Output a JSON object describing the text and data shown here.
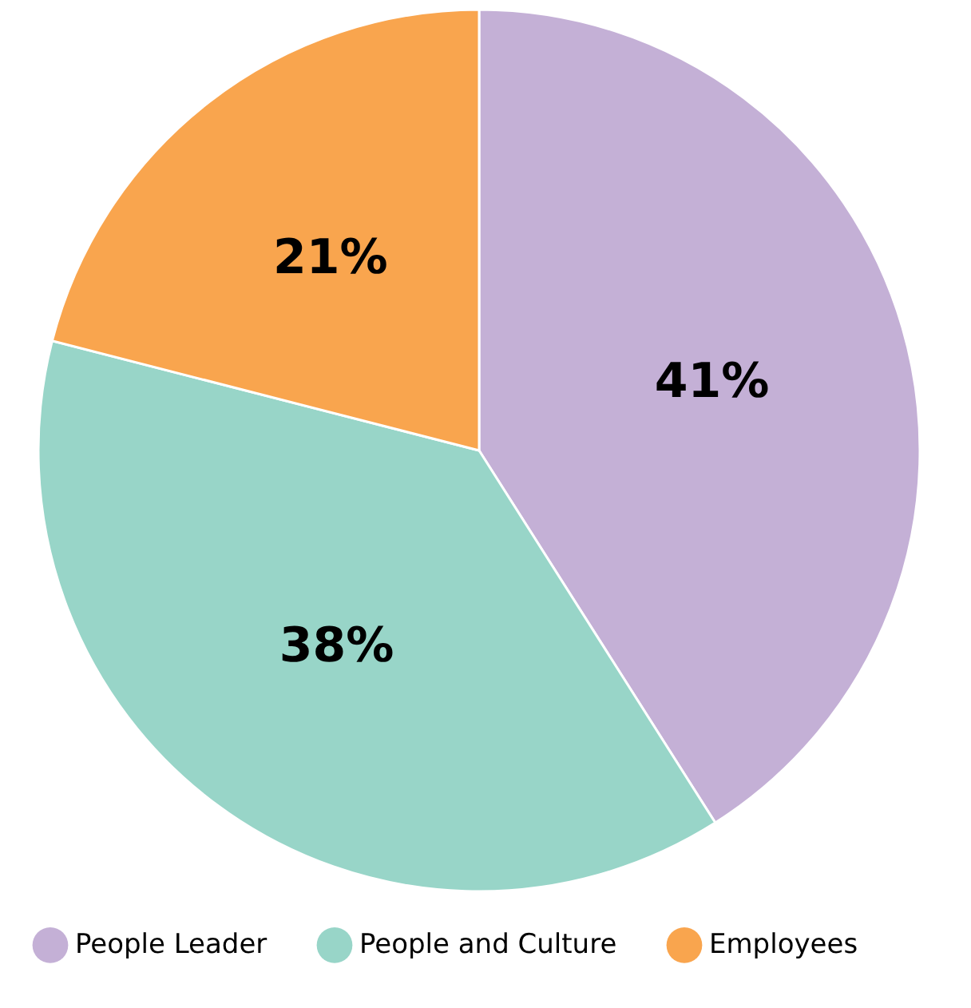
{
  "chart_data": {
    "type": "pie",
    "categories": [
      "People Leader",
      "People and Culture",
      "Employees"
    ],
    "values": [
      41,
      38,
      21
    ],
    "colors": [
      "#c4b0d6",
      "#98d5c8",
      "#f9a54e"
    ],
    "value_labels": [
      "41%",
      "38%",
      "21%"
    ],
    "legend": "bottom"
  }
}
